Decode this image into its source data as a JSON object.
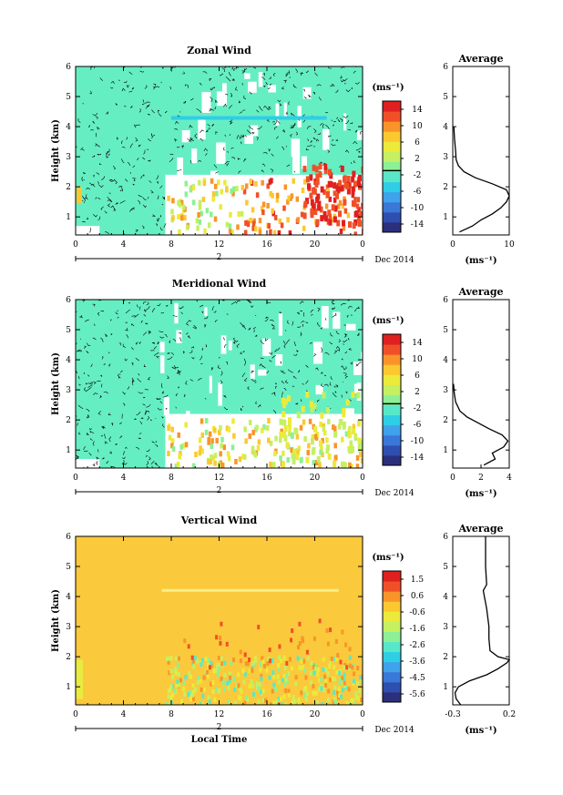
{
  "date_label": "Dec 2014",
  "day_label": "2",
  "xlabel": "Local Time",
  "ylabel": "Height (km)",
  "cb_unit": "(ms⁻¹)",
  "avg_unit": "(ms⁻¹)",
  "colors": {
    "palette": [
      "#2b2f7c",
      "#2e4fb0",
      "#3a78d8",
      "#3fa2ea",
      "#2fcde6",
      "#58e8c9",
      "#8cf096",
      "#c4f062",
      "#ecea3a",
      "#fcc830",
      "#f9942a",
      "#f05028",
      "#e02020"
    ],
    "mint_fill": "#66eec3",
    "vertical_bg": "#fbc93c"
  },
  "chart_data": [
    {
      "type": "heatmap",
      "title": "Zonal Wind",
      "xticks": [
        "0",
        "4",
        "8",
        "12",
        "16",
        "20",
        "0"
      ],
      "xlim": [
        0,
        24
      ],
      "yticks": [
        "1",
        "2",
        "3",
        "4",
        "5",
        "6"
      ],
      "ylim": [
        0.4,
        6
      ],
      "colorbar": {
        "ticks": [
          "14",
          "10",
          "6",
          "2",
          "-2",
          "-6",
          "-10",
          "-14"
        ],
        "range": [
          -16,
          16
        ]
      },
      "average": {
        "title": "Average",
        "xticks": [
          "0",
          "10"
        ],
        "xlim": [
          0,
          10
        ],
        "profile": [
          [
            1.2,
            0.5
          ],
          [
            3.5,
            0.7
          ],
          [
            5.0,
            0.9
          ],
          [
            7.0,
            1.1
          ],
          [
            8.5,
            1.3
          ],
          [
            9.5,
            1.5
          ],
          [
            10.0,
            1.7
          ],
          [
            9.5,
            1.9
          ],
          [
            7.0,
            2.1
          ],
          [
            4.0,
            2.3
          ],
          [
            2.0,
            2.5
          ],
          [
            1.0,
            2.7
          ],
          [
            0.6,
            2.9
          ],
          [
            0.5,
            3.2
          ],
          [
            0.3,
            3.6
          ],
          [
            0.2,
            4.0
          ]
        ]
      }
    },
    {
      "type": "heatmap",
      "title": "Meridional Wind",
      "xticks": [
        "0",
        "4",
        "8",
        "12",
        "16",
        "20",
        "0"
      ],
      "xlim": [
        0,
        24
      ],
      "yticks": [
        "1",
        "2",
        "3",
        "4",
        "5",
        "6"
      ],
      "ylim": [
        0.4,
        6
      ],
      "colorbar": {
        "ticks": [
          "14",
          "10",
          "6",
          "2",
          "-2",
          "-6",
          "-10",
          "-14"
        ],
        "range": [
          -16,
          16
        ]
      },
      "average": {
        "title": "Average",
        "xticks": [
          "0",
          "2",
          "4"
        ],
        "xlim": [
          0,
          4
        ],
        "profile": [
          [
            2.2,
            0.5
          ],
          [
            3.0,
            0.7
          ],
          [
            2.8,
            0.9
          ],
          [
            3.6,
            1.1
          ],
          [
            3.9,
            1.3
          ],
          [
            3.5,
            1.5
          ],
          [
            2.6,
            1.7
          ],
          [
            1.8,
            1.9
          ],
          [
            1.0,
            2.1
          ],
          [
            0.5,
            2.3
          ],
          [
            0.2,
            2.6
          ],
          [
            0.1,
            2.9
          ],
          [
            0.05,
            3.2
          ]
        ]
      }
    },
    {
      "type": "heatmap",
      "title": "Vertical Wind",
      "xticks": [
        "0",
        "4",
        "8",
        "12",
        "16",
        "20",
        "0"
      ],
      "xlim": [
        0,
        24
      ],
      "yticks": [
        "1",
        "2",
        "3",
        "4",
        "5",
        "6"
      ],
      "ylim": [
        0.4,
        6
      ],
      "colorbar": {
        "ticks": [
          "1.5",
          "0.6",
          "-0.6",
          "-1.6",
          "-2.6",
          "-3.6",
          "-4.5",
          "-5.6"
        ],
        "range": [
          -6,
          2
        ]
      },
      "average": {
        "title": "Average",
        "xticks": [
          "-0.3",
          "0.2"
        ],
        "xlim": [
          -0.3,
          0.2
        ],
        "profile": [
          [
            -0.23,
            0.4
          ],
          [
            -0.27,
            0.6
          ],
          [
            -0.28,
            0.8
          ],
          [
            -0.25,
            1.0
          ],
          [
            -0.15,
            1.2
          ],
          [
            0.0,
            1.4
          ],
          [
            0.1,
            1.6
          ],
          [
            0.18,
            1.8
          ],
          [
            0.2,
            1.9
          ],
          [
            0.1,
            2.0
          ],
          [
            0.03,
            2.2
          ],
          [
            0.02,
            2.6
          ],
          [
            0.02,
            3.0
          ],
          [
            0.0,
            3.6
          ],
          [
            -0.02,
            4.0
          ],
          [
            -0.03,
            4.2
          ],
          [
            0.0,
            4.4
          ],
          [
            -0.01,
            5.0
          ],
          [
            -0.01,
            6.0
          ]
        ]
      }
    }
  ]
}
